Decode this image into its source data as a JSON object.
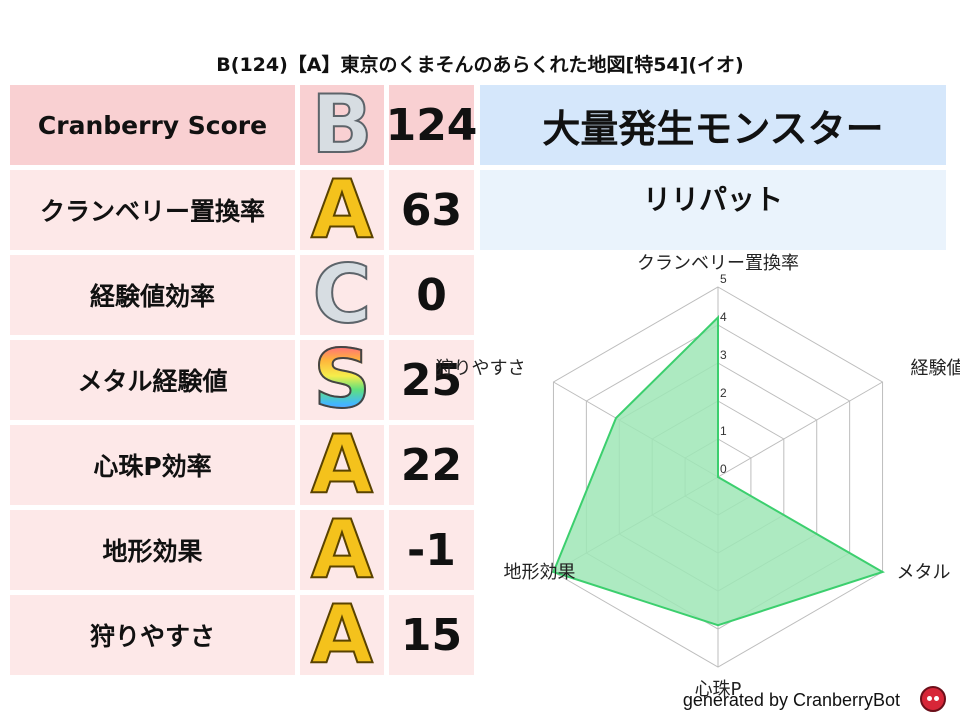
{
  "title": "B(124)【A】東京のくまそんのあらくれた地図[特54](イオ)",
  "score_row": {
    "label": "Cranberry Score",
    "grade": "B",
    "value": "124"
  },
  "rows": [
    {
      "label": "クランベリー置換率",
      "grade": "A",
      "value": "63"
    },
    {
      "label": "経験値効率",
      "grade": "C",
      "value": "0"
    },
    {
      "label": "メタル経験値",
      "grade": "S",
      "value": "25"
    },
    {
      "label": "心珠P効率",
      "grade": "A",
      "value": "22"
    },
    {
      "label": "地形効果",
      "grade": "A",
      "value": "-1"
    },
    {
      "label": "狩りやすさ",
      "grade": "A",
      "value": "15"
    }
  ],
  "monster_header": "大量発生モンスター",
  "monster_name": "リリパット",
  "colors": {
    "score_bg": "#f9d0d2",
    "row_bg": "#fde8e8",
    "header_bg": "#d5e7fb",
    "monster_bg": "#eaf3fc",
    "radar_line": "#3ccf6e",
    "radar_fill": "#9fe6b6",
    "grid": "#bdbdbd"
  },
  "chart_data": {
    "type": "radar",
    "axes": [
      "クランベリー置換率",
      "経験値",
      "メタル",
      "心珠P",
      "地形効果",
      "狩りやすさ"
    ],
    "values": [
      4.2,
      0,
      5,
      3.9,
      5,
      3.1
    ],
    "range": [
      0,
      5
    ],
    "ticks": [
      "0",
      "1",
      "2",
      "3",
      "4",
      "5"
    ]
  },
  "footer": "generated by CranberryBot"
}
